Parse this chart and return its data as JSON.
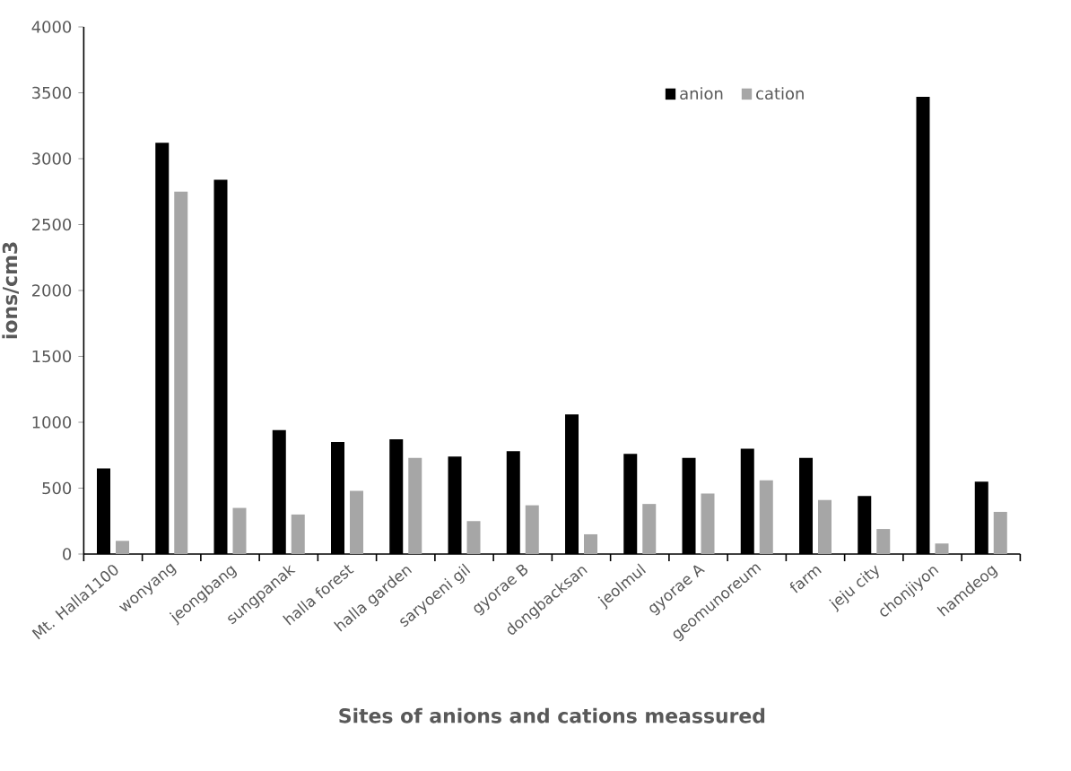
{
  "chart_data": {
    "type": "bar",
    "xlabel": "Sites of anions and cations meassured",
    "ylabel": "ions/cm3",
    "categories": [
      "Mt. Halla1100",
      "wonyang",
      "jeongbang",
      "sungpanak",
      "halla forest",
      "halla garden",
      "saryoeni gil",
      "gyorae B",
      "dongbacksan",
      "jeolmul",
      "gyorae A",
      "geomunoreum",
      "farm",
      "jeju city",
      "chonjiyon",
      "hamdeog"
    ],
    "series": [
      {
        "name": "anion",
        "color": "#000000",
        "values": [
          650,
          3120,
          2840,
          940,
          850,
          870,
          740,
          780,
          1060,
          760,
          730,
          800,
          730,
          440,
          3470,
          550
        ]
      },
      {
        "name": "cation",
        "color": "#a6a6a6",
        "values": [
          100,
          2750,
          350,
          300,
          480,
          730,
          250,
          370,
          150,
          380,
          460,
          560,
          410,
          190,
          80,
          320
        ]
      }
    ],
    "ylim": [
      0,
      4000
    ],
    "yticks": [
      0,
      500,
      1000,
      1500,
      2000,
      2500,
      3000,
      3500,
      4000
    ],
    "legend": "top right",
    "grid": false
  }
}
